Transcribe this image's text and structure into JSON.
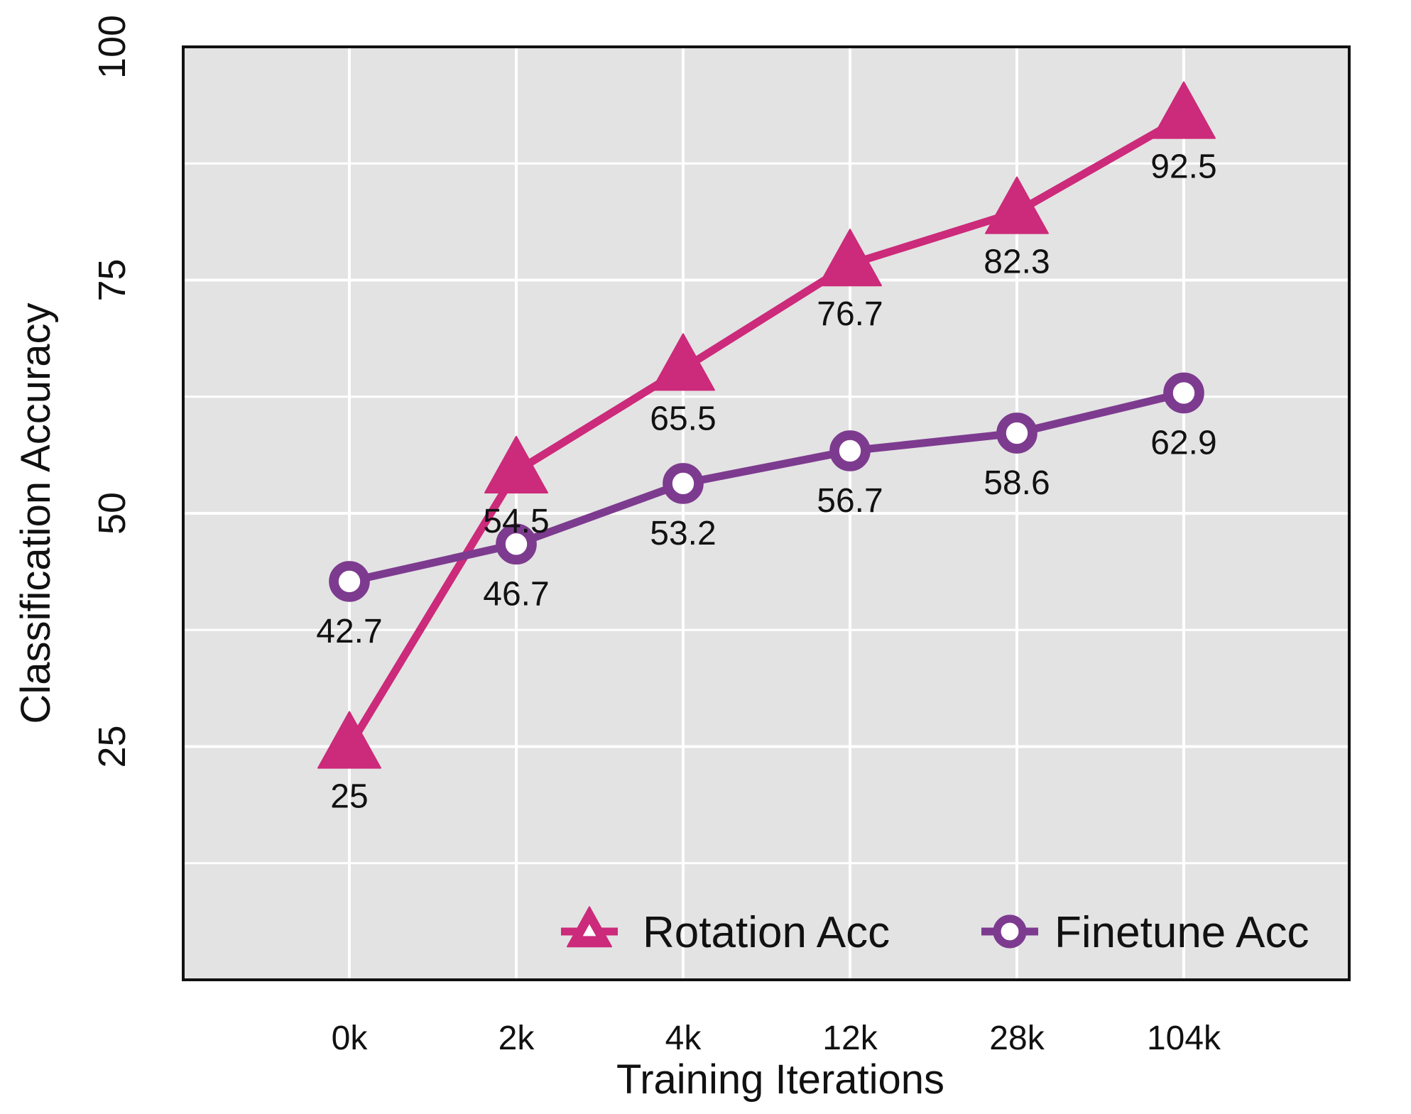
{
  "chart_data": {
    "type": "line",
    "categories": [
      "0k",
      "2k",
      "4k",
      "12k",
      "28k",
      "104k"
    ],
    "series": [
      {
        "name": "Rotation Acc",
        "marker": "triangle",
        "color": "#cc2a7a",
        "values": [
          25,
          54.5,
          65.5,
          76.7,
          82.3,
          92.5
        ]
      },
      {
        "name": "Finetune Acc",
        "marker": "circle",
        "color": "#7d3b8f",
        "values": [
          42.7,
          46.7,
          53.2,
          56.7,
          58.6,
          62.9
        ]
      }
    ],
    "data_labels": {
      "Rotation Acc": [
        "25",
        "54.5",
        "65.5",
        "76.7",
        "82.3",
        "92.5"
      ],
      "Finetune Acc": [
        "42.7",
        "46.7",
        "53.2",
        "56.7",
        "58.6",
        "62.9"
      ]
    },
    "xlabel": "Training Iterations",
    "ylabel": "Classification Accuracy",
    "ylim": [
      0,
      100
    ],
    "yticks": [
      25,
      50,
      75,
      100
    ],
    "ytick_labels": [
      "25",
      "50",
      "75",
      "100"
    ],
    "grid": true,
    "legend": "bottom-right",
    "background": "#e3e3e3"
  }
}
